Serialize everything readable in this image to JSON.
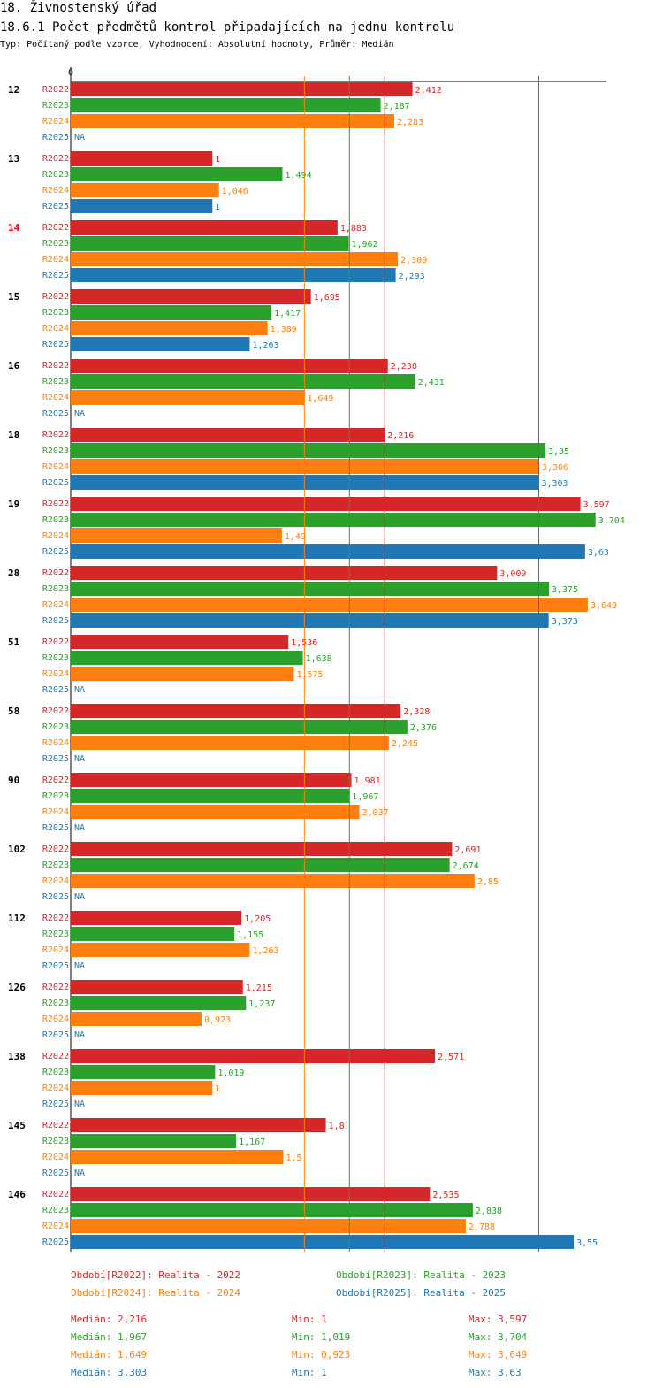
{
  "header": {
    "title": "18. Živnostenský úřad",
    "subtitle": "18.6.1 Počet předmětů kontrol připadajících na jednu kontrolu",
    "meta": "Typ: Počítaný podle vzorce, Vyhodnocení: Absolutní hodnoty, Průměr: Medián"
  },
  "colors": {
    "R2022": "#d62728",
    "R2023": "#2ca02c",
    "R2024": "#ff7f0e",
    "R2025": "#1f77b4",
    "highlight": "#ff0000"
  },
  "chart_data": {
    "type": "bar",
    "orientation": "horizontal",
    "axis_zero_label": "0",
    "xlim": [
      0,
      3.85
    ],
    "na_label": "NA",
    "highlight_category": "14",
    "categories": [
      "12",
      "13",
      "14",
      "15",
      "16",
      "18",
      "19",
      "28",
      "51",
      "58",
      "90",
      "102",
      "112",
      "126",
      "138",
      "145",
      "146"
    ],
    "series": [
      {
        "name": "R2022",
        "values": [
          2.412,
          1,
          1.883,
          1.695,
          2.238,
          2.216,
          3.597,
          3.009,
          1.536,
          2.328,
          1.981,
          2.691,
          1.205,
          1.215,
          2.571,
          1.8,
          2.535
        ],
        "labels": [
          "2,412",
          "1",
          "1,883",
          "1,695",
          "2,238",
          "2,216",
          "3,597",
          "3,009",
          "1,536",
          "2,328",
          "1,981",
          "2,691",
          "1,205",
          "1,215",
          "2,571",
          "1,8",
          "2,535"
        ]
      },
      {
        "name": "R2023",
        "values": [
          2.187,
          1.494,
          1.962,
          1.417,
          2.431,
          3.35,
          3.704,
          3.375,
          1.638,
          2.376,
          1.967,
          2.674,
          1.155,
          1.237,
          1.019,
          1.167,
          2.838
        ],
        "labels": [
          "2,187",
          "1,494",
          "1,962",
          "1,417",
          "2,431",
          "3,35",
          "3,704",
          "3,375",
          "1,638",
          "2,376",
          "1,967",
          "2,674",
          "1,155",
          "1,237",
          "1,019",
          "1,167",
          "2,838"
        ]
      },
      {
        "name": "R2024",
        "values": [
          2.283,
          1.046,
          2.309,
          1.389,
          1.649,
          3.306,
          1.49,
          3.649,
          1.575,
          2.245,
          2.037,
          2.85,
          1.263,
          0.923,
          1,
          1.5,
          2.788
        ],
        "labels": [
          "2,283",
          "1,046",
          "2,309",
          "1,389",
          "1,649",
          "3,306",
          "1,49",
          "3,649",
          "1,575",
          "2,245",
          "2,037",
          "2,85",
          "1,263",
          "0,923",
          "1",
          "1,5",
          "2,788"
        ]
      },
      {
        "name": "R2025",
        "values": [
          null,
          1,
          2.293,
          1.263,
          null,
          3.303,
          3.63,
          3.373,
          null,
          null,
          null,
          null,
          null,
          null,
          null,
          null,
          3.55
        ],
        "labels": [
          "NA",
          "1",
          "2,293",
          "1,263",
          "NA",
          "3,303",
          "3,63",
          "3,373",
          "NA",
          "NA",
          "NA",
          "NA",
          "NA",
          "NA",
          "NA",
          "NA",
          "3,55"
        ]
      }
    ],
    "reference_lines": [
      {
        "series": "R2024",
        "stat": "median",
        "value": 1.649
      },
      {
        "series": "R2023",
        "stat": "median",
        "value": 1.967
      },
      {
        "series": "R2022",
        "stat": "median",
        "value": 2.216
      },
      {
        "series": "R2025",
        "stat": "median",
        "value": 3.303
      }
    ]
  },
  "legend": {
    "periods": [
      {
        "key": "R2022",
        "text": "Období[R2022]: Realita - 2022"
      },
      {
        "key": "R2023",
        "text": "Období[R2023]: Realita - 2023"
      },
      {
        "key": "R2024",
        "text": "Období[R2024]: Realita - 2024"
      },
      {
        "key": "R2025",
        "text": "Období[R2025]: Realita - 2025"
      }
    ],
    "stats": [
      {
        "key": "R2022",
        "median": "Medián: 2,216",
        "min": "Min: 1",
        "max": "Max: 3,597"
      },
      {
        "key": "R2023",
        "median": "Medián: 1,967",
        "min": "Min: 1,019",
        "max": "Max: 3,704"
      },
      {
        "key": "R2024",
        "median": "Medián: 1,649",
        "min": "Min: 0,923",
        "max": "Max: 3,649"
      },
      {
        "key": "R2025",
        "median": "Medián: 3,303",
        "min": "Min: 1",
        "max": "Max: 3,63"
      }
    ]
  }
}
